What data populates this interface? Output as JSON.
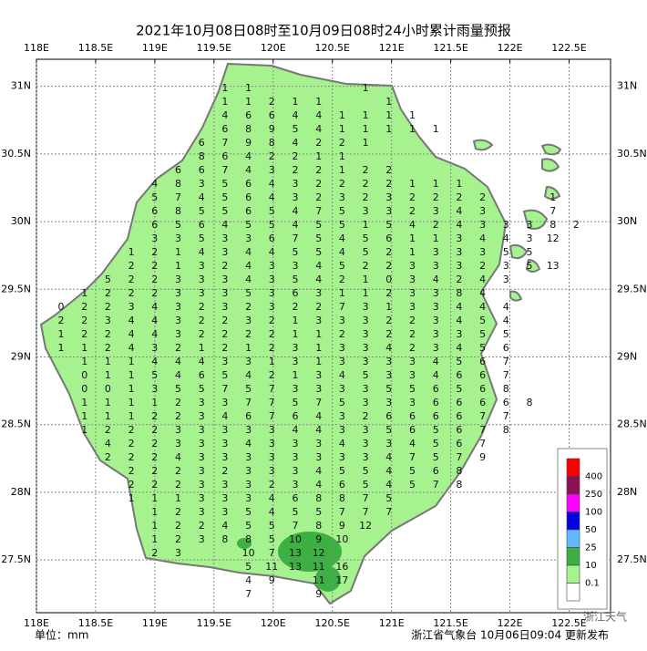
{
  "map": {
    "title": "2021年10月08日08时至10月09日08时24小时累计雨量预报",
    "lon_range": [
      118,
      122.85
    ],
    "lat_range": [
      27.11,
      31.2
    ],
    "lon_ticks": [
      {
        "value": 118,
        "label": "118E"
      },
      {
        "value": 118.5,
        "label": "118.5E"
      },
      {
        "value": 119,
        "label": "119E"
      },
      {
        "value": 119.5,
        "label": "119.5E"
      },
      {
        "value": 120,
        "label": "120E"
      },
      {
        "value": 120.5,
        "label": "120.5E"
      },
      {
        "value": 121,
        "label": "121E"
      },
      {
        "value": 121.5,
        "label": "121.5E"
      },
      {
        "value": 122,
        "label": "122E"
      },
      {
        "value": 122.5,
        "label": "122.5E"
      }
    ],
    "lat_ticks": [
      {
        "value": 31,
        "label": "31N"
      },
      {
        "value": 30.5,
        "label": "30.5N"
      },
      {
        "value": 30,
        "label": "30N"
      },
      {
        "value": 29.5,
        "label": "29.5N"
      },
      {
        "value": 29,
        "label": "29N"
      },
      {
        "value": 28.5,
        "label": "28.5N"
      },
      {
        "value": 28,
        "label": "28N"
      },
      {
        "value": 27.5,
        "label": "27.5N"
      }
    ],
    "grid": [
      [
        null,
        null,
        null,
        null,
        null,
        null,
        null,
        1,
        1,
        null,
        null,
        null,
        null,
        1
      ],
      [
        null,
        null,
        null,
        null,
        null,
        null,
        null,
        1,
        1,
        2,
        1,
        1,
        null,
        null,
        1
      ],
      [
        null,
        null,
        null,
        null,
        null,
        null,
        null,
        4,
        6,
        6,
        4,
        4,
        1,
        1,
        1,
        1
      ],
      [
        null,
        null,
        null,
        null,
        null,
        null,
        null,
        6,
        8,
        9,
        5,
        4,
        1,
        1,
        1,
        1,
        1
      ],
      [
        null,
        null,
        null,
        null,
        null,
        null,
        6,
        7,
        9,
        8,
        4,
        2,
        2,
        1
      ],
      [
        null,
        null,
        null,
        null,
        null,
        null,
        8,
        6,
        4,
        2,
        2,
        1,
        1
      ],
      [
        null,
        null,
        null,
        null,
        null,
        6,
        6,
        7,
        4,
        3,
        2,
        2,
        1,
        2,
        2
      ],
      [
        null,
        null,
        null,
        null,
        4,
        8,
        3,
        5,
        6,
        4,
        3,
        2,
        2,
        2,
        2,
        1,
        1,
        1
      ],
      [
        null,
        null,
        null,
        null,
        5,
        7,
        4,
        5,
        6,
        4,
        3,
        2,
        3,
        2,
        3,
        2,
        2,
        2,
        2,
        null,
        null,
        1
      ],
      [
        null,
        null,
        null,
        null,
        6,
        8,
        5,
        5,
        6,
        5,
        4,
        7,
        5,
        3,
        3,
        2,
        3,
        4,
        3,
        null,
        null,
        7
      ],
      [
        null,
        null,
        null,
        null,
        6,
        5,
        6,
        4,
        5,
        5,
        4,
        5,
        5,
        1,
        5,
        4,
        2,
        4,
        3,
        3,
        3,
        8,
        2
      ],
      [
        null,
        null,
        null,
        null,
        3,
        3,
        5,
        3,
        3,
        6,
        7,
        5,
        4,
        5,
        6,
        1,
        1,
        3,
        4,
        4,
        3,
        12
      ],
      [
        null,
        null,
        null,
        1,
        2,
        1,
        4,
        3,
        4,
        4,
        5,
        5,
        4,
        5,
        2,
        1,
        3,
        3,
        3,
        5,
        5
      ],
      [
        null,
        null,
        null,
        2,
        2,
        1,
        3,
        2,
        4,
        3,
        3,
        4,
        5,
        2,
        2,
        3,
        3,
        3,
        2,
        3,
        5,
        13
      ],
      [
        null,
        null,
        5,
        2,
        2,
        3,
        3,
        3,
        4,
        3,
        5,
        4,
        2,
        1,
        0,
        3,
        4,
        2,
        4,
        3
      ],
      [
        null,
        1,
        2,
        2,
        2,
        3,
        3,
        3,
        5,
        3,
        6,
        3,
        1,
        1,
        2,
        3,
        3,
        8,
        4
      ],
      [
        0,
        2,
        2,
        3,
        4,
        3,
        2,
        3,
        2,
        3,
        2,
        2,
        7,
        3,
        1,
        3,
        3,
        4,
        4,
        4
      ],
      [
        2,
        2,
        3,
        4,
        4,
        3,
        2,
        2,
        3,
        2,
        1,
        3,
        3,
        3,
        2,
        2,
        3,
        4,
        5,
        4
      ],
      [
        1,
        2,
        2,
        4,
        4,
        3,
        2,
        2,
        2,
        2,
        1,
        1,
        2,
        3,
        2,
        2,
        3,
        3,
        5,
        5
      ],
      [
        1,
        1,
        2,
        4,
        3,
        2,
        1,
        2,
        1,
        2,
        3,
        1,
        3,
        3,
        4,
        2,
        3,
        4,
        5,
        6
      ],
      [
        null,
        1,
        1,
        1,
        4,
        4,
        4,
        3,
        3,
        1,
        3,
        1,
        3,
        3,
        3,
        3,
        4,
        5,
        6,
        7
      ],
      [
        null,
        0,
        1,
        1,
        5,
        4,
        6,
        5,
        4,
        2,
        1,
        3,
        4,
        5,
        3,
        3,
        4,
        6,
        6,
        7
      ],
      [
        null,
        0,
        0,
        1,
        3,
        5,
        5,
        7,
        5,
        7,
        3,
        3,
        3,
        3,
        5,
        5,
        6,
        5,
        6,
        8
      ],
      [
        null,
        1,
        1,
        1,
        1,
        2,
        3,
        3,
        7,
        7,
        5,
        7,
        5,
        3,
        3,
        3,
        6,
        6,
        6,
        6,
        8
      ],
      [
        null,
        1,
        1,
        1,
        2,
        2,
        3,
        4,
        6,
        7,
        6,
        4,
        3,
        2,
        6,
        6,
        6,
        6,
        7,
        7
      ],
      [
        null,
        1,
        2,
        2,
        2,
        3,
        3,
        3,
        3,
        3,
        4,
        4,
        3,
        3,
        5,
        6,
        5,
        6,
        7,
        8
      ],
      [
        null,
        null,
        4,
        2,
        2,
        3,
        3,
        3,
        4,
        3,
        3,
        3,
        4,
        3,
        3,
        4,
        5,
        6,
        7
      ],
      [
        null,
        null,
        2,
        2,
        2,
        4,
        3,
        3,
        3,
        3,
        3,
        3,
        3,
        3,
        4,
        7,
        5,
        7,
        9
      ],
      [
        null,
        null,
        null,
        2,
        2,
        2,
        3,
        2,
        3,
        3,
        3,
        4,
        5,
        5,
        4,
        5,
        6,
        8
      ],
      [
        null,
        null,
        null,
        2,
        2,
        2,
        3,
        3,
        3,
        2,
        3,
        4,
        6,
        5,
        4,
        5,
        7,
        8
      ],
      [
        null,
        null,
        null,
        1,
        1,
        1,
        3,
        3,
        3,
        4,
        6,
        8,
        8,
        7,
        5
      ],
      [
        null,
        null,
        null,
        null,
        1,
        2,
        3,
        3,
        5,
        4,
        5,
        5,
        7,
        7,
        7
      ],
      [
        null,
        null,
        null,
        null,
        1,
        2,
        2,
        4,
        5,
        5,
        7,
        8,
        9,
        12
      ],
      [
        null,
        null,
        null,
        null,
        1,
        2,
        3,
        8,
        8,
        5,
        10,
        9,
        10
      ],
      [
        null,
        null,
        null,
        null,
        2,
        3,
        null,
        null,
        10,
        7,
        13,
        12
      ],
      [
        null,
        null,
        null,
        null,
        null,
        null,
        null,
        null,
        5,
        11,
        13,
        11,
        16
      ],
      [
        null,
        null,
        null,
        null,
        null,
        null,
        null,
        null,
        4,
        9,
        null,
        11,
        17
      ],
      [
        null,
        null,
        null,
        null,
        null,
        null,
        null,
        null,
        7,
        null,
        null,
        9
      ]
    ],
    "legend": {
      "levels": [
        400,
        250,
        100,
        50,
        25,
        10,
        0.1
      ],
      "colors": [
        "#ff0000",
        "#8b1054",
        "#ff00ff",
        "#0000e0",
        "#63b8ff",
        "#3cb043",
        "#a6f28f",
        "#ffffff"
      ]
    },
    "unit": "单位：mm",
    "source": "浙江省气象台 10月06日09:04 更新发布",
    "watermark": "浙江天气"
  }
}
